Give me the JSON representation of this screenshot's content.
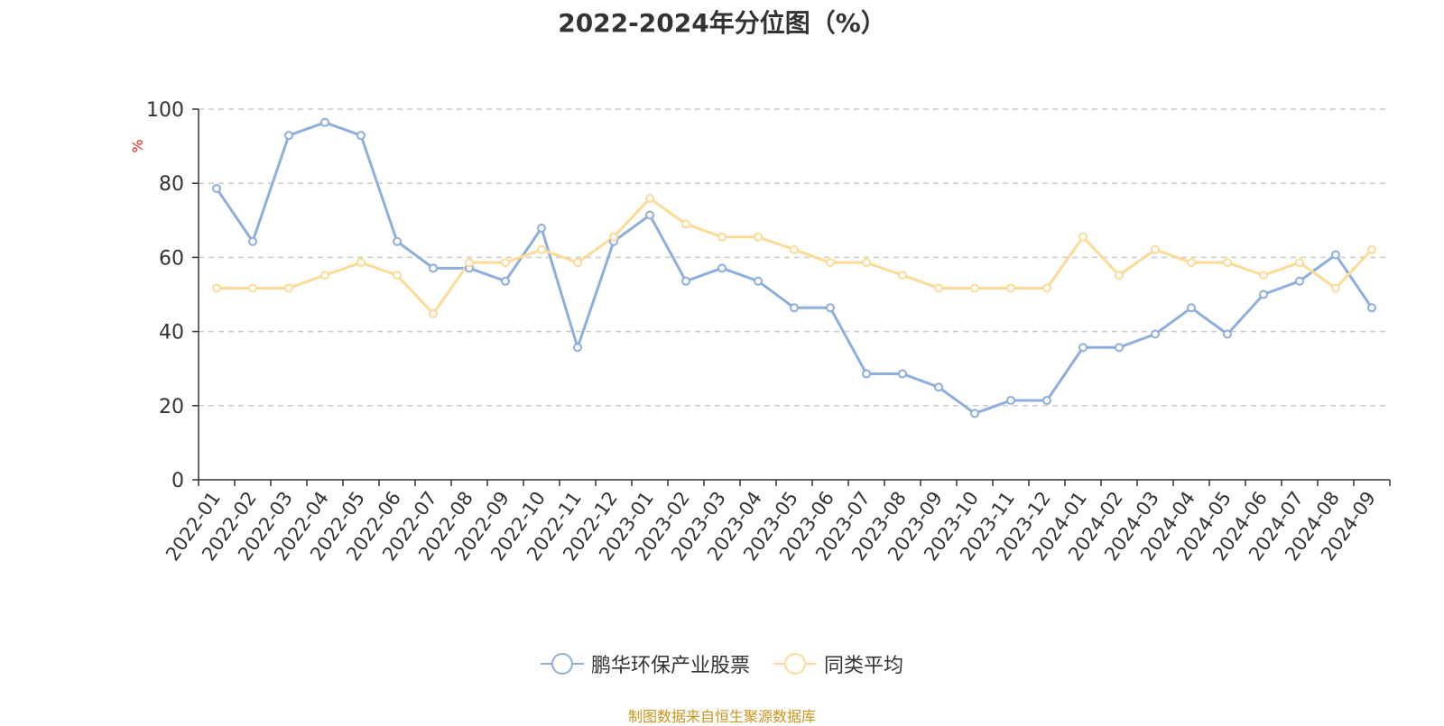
{
  "title": "2022-2024年分位图（%）",
  "source": "制图数据来自恒生聚源数据库",
  "colors": {
    "series1": "#8eaedb",
    "series2": "#fddb96",
    "unit": "#e8271b",
    "grid": "#cccccc",
    "axis": "#333333"
  },
  "chart_data": {
    "type": "line",
    "ylabel": "%",
    "ylim": [
      0,
      100
    ],
    "yticks": [
      0,
      20,
      40,
      60,
      80,
      100
    ],
    "grid": true,
    "legend_position": "bottom",
    "categories": [
      "2022-01",
      "2022-02",
      "2022-03",
      "2022-04",
      "2022-05",
      "2022-06",
      "2022-07",
      "2022-08",
      "2022-09",
      "2022-10",
      "2022-11",
      "2022-12",
      "2023-01",
      "2023-02",
      "2023-03",
      "2023-04",
      "2023-05",
      "2023-06",
      "2023-07",
      "2023-08",
      "2023-09",
      "2023-10",
      "2023-11",
      "2023-12",
      "2024-01",
      "2024-02",
      "2024-03",
      "2024-04",
      "2024-05",
      "2024-06",
      "2024-07",
      "2024-08",
      "2024-09"
    ],
    "series": [
      {
        "name": "鹏华环保产业股票",
        "color": "#8eaedb",
        "values": [
          78.6,
          64.3,
          92.9,
          96.4,
          92.9,
          64.3,
          57.1,
          57.1,
          53.6,
          67.9,
          35.7,
          64.3,
          71.4,
          53.6,
          57.1,
          53.6,
          46.4,
          46.4,
          28.6,
          28.6,
          25.0,
          17.9,
          21.4,
          21.4,
          35.7,
          35.7,
          39.3,
          46.4,
          39.3,
          50.0,
          53.6,
          60.7,
          46.4
        ]
      },
      {
        "name": "同类平均",
        "color": "#fddb96",
        "values": [
          51.7,
          51.7,
          51.7,
          55.2,
          58.6,
          55.2,
          44.8,
          58.6,
          58.6,
          62.1,
          58.6,
          65.5,
          75.9,
          69.0,
          65.5,
          65.5,
          62.1,
          58.6,
          58.6,
          55.2,
          51.7,
          51.7,
          51.7,
          51.7,
          65.5,
          55.2,
          62.1,
          58.6,
          58.6,
          55.2,
          58.6,
          51.7,
          62.1
        ]
      }
    ]
  }
}
